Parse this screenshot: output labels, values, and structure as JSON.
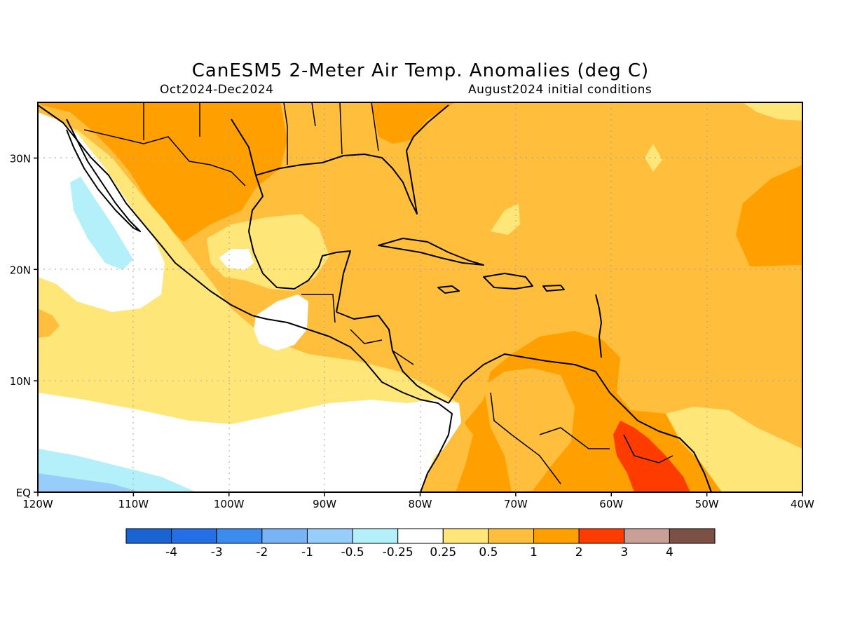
{
  "header": {
    "title": "CanESM5 2-Meter Air Temp. Anomalies (deg C)",
    "period": "Oct2024-Dec2024",
    "init": "August2024 initial conditions"
  },
  "map": {
    "lon_range": [
      -120,
      -40
    ],
    "lat_range": [
      0,
      35
    ],
    "x_ticks": [
      {
        "lon": -120,
        "label": "120W"
      },
      {
        "lon": -110,
        "label": "110W"
      },
      {
        "lon": -100,
        "label": "100W"
      },
      {
        "lon": -90,
        "label": "90W"
      },
      {
        "lon": -80,
        "label": "80W"
      },
      {
        "lon": -70,
        "label": "70W"
      },
      {
        "lon": -60,
        "label": "60W"
      },
      {
        "lon": -50,
        "label": "50W"
      },
      {
        "lon": -40,
        "label": "40W"
      }
    ],
    "y_ticks": [
      {
        "lat": 0,
        "label": "EQ"
      },
      {
        "lat": 10,
        "label": "10N"
      },
      {
        "lat": 20,
        "label": "20N"
      },
      {
        "lat": 30,
        "label": "30N"
      }
    ],
    "grid": true
  },
  "colorbar": {
    "colors": [
      "#1a64d2",
      "#246ee6",
      "#3c8cf0",
      "#78b4f5",
      "#96cdfa",
      "#b4f0fa",
      "#ffffff",
      "#ffe678",
      "#ffbe3c",
      "#ffa000",
      "#ff3c00",
      "#c8a096",
      "#7d5046"
    ],
    "labels": [
      "-4",
      "-3",
      "-2",
      "-1",
      "-0.5",
      "-0.25",
      "0.25",
      "0.5",
      "1",
      "2",
      "3",
      "4"
    ]
  }
}
